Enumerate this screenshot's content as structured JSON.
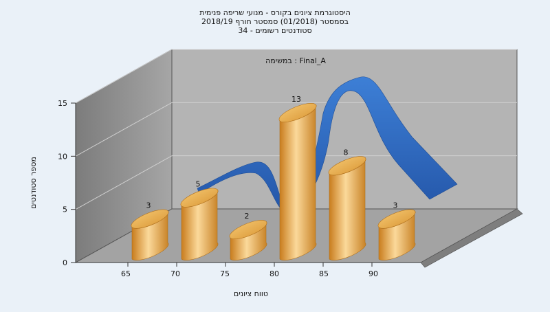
{
  "chart_data": {
    "type": "bar",
    "title_lines": [
      "היסטוגרמת ציונים בקורס - מנועי שריפה פנימית",
      "בסמסטר  (01/2018)  סמסטר חורף  2018/19",
      "סטודנטים רשומים - 34"
    ],
    "subtitle": "במשימה : Final_A",
    "xlabel": "טווח ציונים",
    "ylabel": "מספר סטודנטים",
    "x_ticks": [
      "65",
      "70",
      "75",
      "80",
      "85",
      "90"
    ],
    "y_ticks": [
      "0",
      "5",
      "10",
      "15"
    ],
    "ylim": [
      0,
      15
    ],
    "values": [
      3,
      5,
      2,
      13,
      8,
      3
    ],
    "data_labels": [
      "3",
      "5",
      "2",
      "13",
      "8",
      "3"
    ],
    "bar_color": "#f0b860",
    "trend_color": "#2f6cbf",
    "grid": true,
    "style": "3d"
  }
}
